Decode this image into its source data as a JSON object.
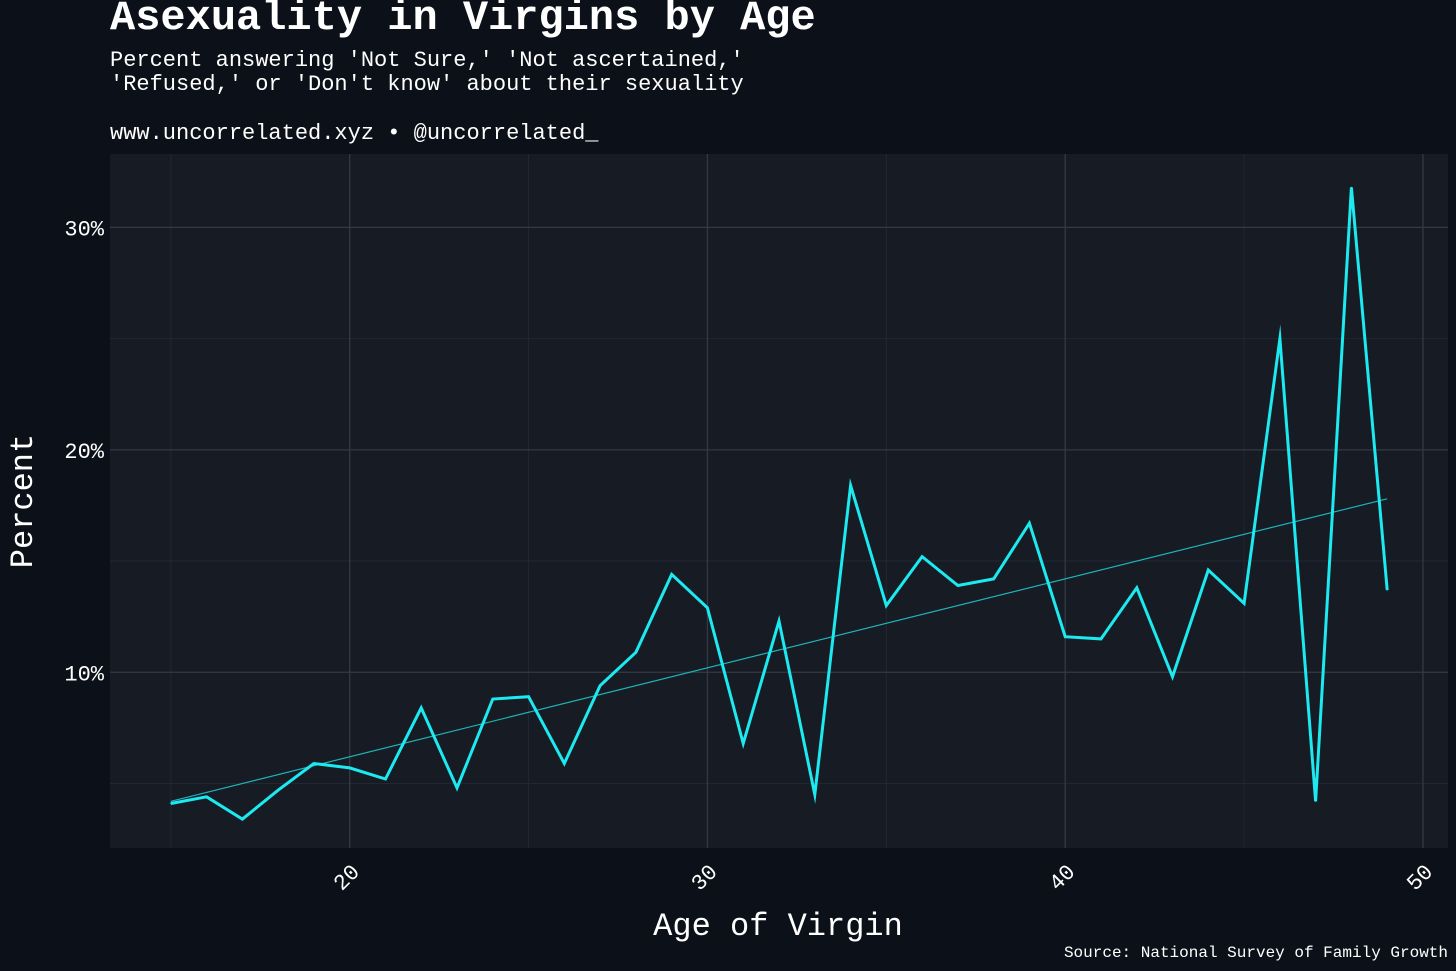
{
  "header": {
    "title": "Asexuality in Virgins by Age",
    "subtitle_line1": "Percent answering 'Not Sure,' 'Not ascertained,'",
    "subtitle_line2": "'Refused,' or 'Don't know' about their sexuality",
    "credits": "www.uncorrelated.xyz • @uncorrelated_"
  },
  "caption": "Source: National Survey of Family Growth",
  "colors": {
    "background": "#0c1018",
    "panel": "#161b24",
    "grid_major": "#343a44",
    "grid_minor": "#222833",
    "line": "#1de9f0",
    "trend": "#1fb3b8"
  },
  "chart_data": {
    "type": "line",
    "title": "Asexuality in Virgins by Age",
    "xlabel": "Age of Virgin",
    "ylabel": "Percent",
    "xlim": [
      13.3,
      50.7
    ],
    "ylim": [
      2.1,
      33.3
    ],
    "x_ticks": [
      20,
      30,
      40,
      50
    ],
    "x_tick_labels": [
      "20",
      "30",
      "40",
      "50"
    ],
    "y_ticks": [
      10,
      20,
      30
    ],
    "y_tick_labels": [
      "10%",
      "20%",
      "30%"
    ],
    "grid": true,
    "legend": "none",
    "series": [
      {
        "x": [
          15,
          16,
          17,
          18,
          19,
          20,
          21,
          22,
          23,
          24,
          25,
          26,
          27,
          28,
          29,
          30,
          31,
          32,
          33,
          34,
          35,
          36,
          37,
          38,
          39,
          40,
          41,
          42,
          43,
          44,
          45,
          46,
          47,
          48,
          49
        ],
        "values": [
          4.1,
          4.4,
          3.4,
          4.7,
          5.9,
          5.7,
          5.2,
          8.4,
          4.8,
          8.8,
          8.9,
          5.9,
          9.4,
          10.9,
          14.4,
          12.9,
          6.8,
          12.3,
          4.5,
          18.4,
          13.0,
          15.2,
          13.9,
          14.2,
          16.7,
          11.6,
          11.5,
          13.8,
          9.8,
          14.6,
          13.1,
          25.0,
          4.2,
          31.8,
          13.7
        ]
      }
    ],
    "trend_line": {
      "x": [
        15,
        49
      ],
      "values": [
        4.2,
        17.8
      ]
    }
  }
}
